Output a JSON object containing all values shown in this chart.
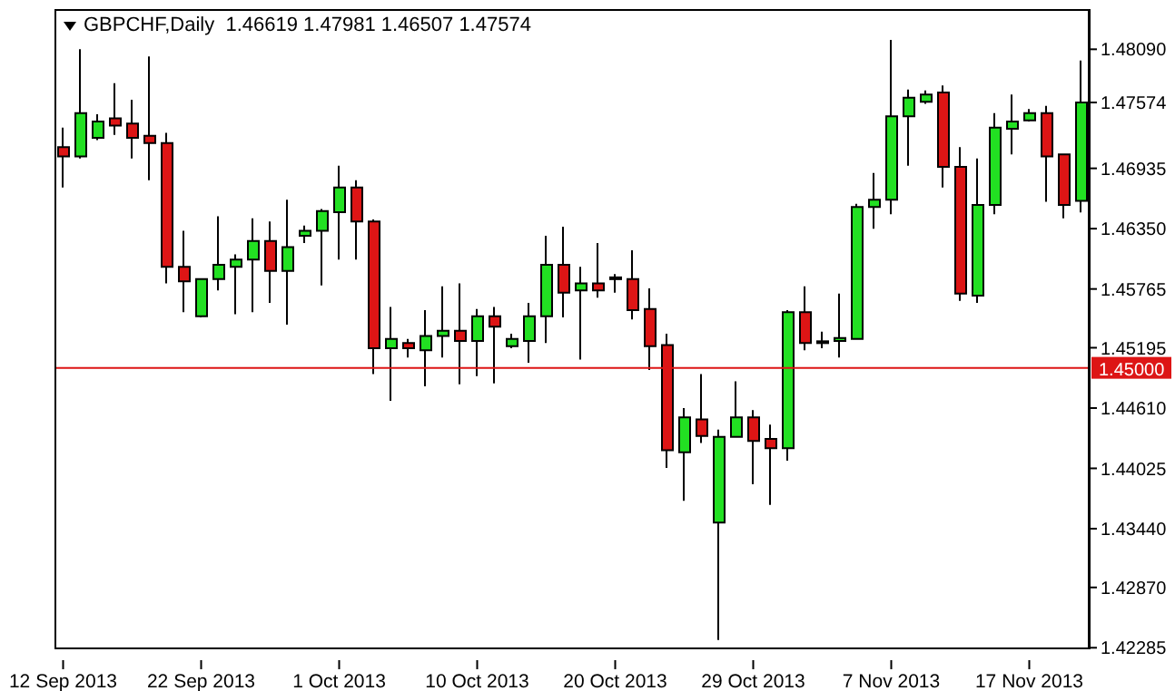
{
  "chart_data": {
    "type": "candlestick",
    "title": "GBPCHF,Daily  1.46619 1.47981 1.46507 1.47574",
    "categories": [
      "12 Sep 2013",
      null,
      null,
      null,
      null,
      null,
      null,
      null,
      "22 Sep 2013",
      null,
      null,
      null,
      null,
      null,
      null,
      null,
      "1 Oct 2013",
      null,
      null,
      null,
      null,
      null,
      null,
      null,
      "10 Oct 2013",
      null,
      null,
      null,
      null,
      null,
      null,
      null,
      "20 Oct 2013",
      null,
      null,
      null,
      null,
      null,
      null,
      null,
      "29 Oct 2013",
      null,
      null,
      null,
      null,
      null,
      null,
      null,
      "7 Nov 2013",
      null,
      null,
      null,
      null,
      null,
      null,
      null,
      "17 Nov 2013",
      null,
      null,
      null
    ],
    "ohlc": [
      [
        1.4714,
        1.4733,
        1.4675,
        1.4705
      ],
      [
        1.4705,
        1.4809,
        1.4703,
        1.4747
      ],
      [
        1.4723,
        1.4746,
        1.4721,
        1.4739
      ],
      [
        1.4742,
        1.4776,
        1.4726,
        1.4735
      ],
      [
        1.4737,
        1.476,
        1.4703,
        1.4723
      ],
      [
        1.4725,
        1.4802,
        1.4682,
        1.4718
      ],
      [
        1.4718,
        1.4728,
        1.4582,
        1.4598
      ],
      [
        1.4598,
        1.4633,
        1.4554,
        1.4584
      ],
      [
        1.455,
        1.4586,
        1.4549,
        1.4586
      ],
      [
        1.4586,
        1.4647,
        1.4575,
        1.46
      ],
      [
        1.4598,
        1.461,
        1.4552,
        1.4605
      ],
      [
        1.4605,
        1.4645,
        1.4554,
        1.4623
      ],
      [
        1.4623,
        1.4642,
        1.4563,
        1.4594
      ],
      [
        1.4594,
        1.4663,
        1.4542,
        1.4617
      ],
      [
        1.4628,
        1.4638,
        1.4621,
        1.4633
      ],
      [
        1.4633,
        1.4654,
        1.458,
        1.4652
      ],
      [
        1.4651,
        1.4696,
        1.4605,
        1.4675
      ],
      [
        1.4675,
        1.4682,
        1.4605,
        1.4642
      ],
      [
        1.4642,
        1.4644,
        1.4494,
        1.4519
      ],
      [
        1.4519,
        1.4559,
        1.4468,
        1.4528
      ],
      [
        1.4524,
        1.4528,
        1.451,
        1.4519
      ],
      [
        1.4517,
        1.4556,
        1.4482,
        1.4531
      ],
      [
        1.4531,
        1.4579,
        1.451,
        1.4536
      ],
      [
        1.4536,
        1.4582,
        1.4484,
        1.4526
      ],
      [
        1.4526,
        1.4557,
        1.4492,
        1.455
      ],
      [
        1.455,
        1.4559,
        1.4485,
        1.454
      ],
      [
        1.4521,
        1.4533,
        1.4519,
        1.4528
      ],
      [
        1.4526,
        1.4563,
        1.4505,
        1.455
      ],
      [
        1.455,
        1.4628,
        1.4524,
        1.46
      ],
      [
        1.46,
        1.4637,
        1.4549,
        1.4573
      ],
      [
        1.4575,
        1.4598,
        1.4508,
        1.4582
      ],
      [
        1.4582,
        1.4621,
        1.4568,
        1.4575
      ],
      [
        1.4587,
        1.4591,
        1.4573,
        1.4586
      ],
      [
        1.4586,
        1.4614,
        1.4547,
        1.4556
      ],
      [
        1.4557,
        1.4577,
        1.4498,
        1.4521
      ],
      [
        1.4522,
        1.4533,
        1.4403,
        1.442
      ],
      [
        1.4418,
        1.4461,
        1.4371,
        1.4452
      ],
      [
        1.445,
        1.4494,
        1.4427,
        1.4434
      ],
      [
        1.435,
        1.444,
        1.4236,
        1.4433
      ],
      [
        1.4433,
        1.4487,
        1.4433,
        1.4452
      ],
      [
        1.4452,
        1.4459,
        1.4387,
        1.4429
      ],
      [
        1.4431,
        1.4445,
        1.4367,
        1.4422
      ],
      [
        1.4422,
        1.4556,
        1.441,
        1.4554
      ],
      [
        1.4554,
        1.4579,
        1.4517,
        1.4524
      ],
      [
        1.4525,
        1.4535,
        1.4519,
        1.4524
      ],
      [
        1.4526,
        1.4572,
        1.451,
        1.4529
      ],
      [
        1.4528,
        1.4659,
        1.4528,
        1.4656
      ],
      [
        1.4656,
        1.4689,
        1.4635,
        1.4663
      ],
      [
        1.4663,
        1.4818,
        1.4649,
        1.4744
      ],
      [
        1.4744,
        1.477,
        1.4696,
        1.4762
      ],
      [
        1.4758,
        1.4769,
        1.4756,
        1.4765
      ],
      [
        1.4767,
        1.4774,
        1.4675,
        1.4695
      ],
      [
        1.4695,
        1.4714,
        1.4565,
        1.4572
      ],
      [
        1.457,
        1.4703,
        1.4563,
        1.4658
      ],
      [
        1.4658,
        1.4747,
        1.4649,
        1.4733
      ],
      [
        1.4732,
        1.4765,
        1.4707,
        1.4739
      ],
      [
        1.474,
        1.4751,
        1.4739,
        1.4747
      ],
      [
        1.4747,
        1.4754,
        1.4661,
        1.4705
      ],
      [
        1.4707,
        1.4707,
        1.4645,
        1.4658
      ],
      [
        1.46619,
        1.47981,
        1.46507,
        1.47574
      ]
    ],
    "colors": [
      "#dd1515",
      "#22e022",
      "#22e022",
      "#dd1515",
      "#dd1515",
      "#dd1515",
      "#dd1515",
      "#dd1515",
      "#22e022",
      "#22e022",
      "#22e022",
      "#22e022",
      "#dd1515",
      "#22e022",
      "#22e022",
      "#22e022",
      "#22e022",
      "#dd1515",
      "#dd1515",
      "#22e022",
      "#dd1515",
      "#22e022",
      "#22e022",
      "#dd1515",
      "#22e022",
      "#dd1515",
      "#22e022",
      "#22e022",
      "#22e022",
      "#dd1515",
      "#22e022",
      "#dd1515",
      "#dd1515",
      "#dd1515",
      "#dd1515",
      "#dd1515",
      "#22e022",
      "#dd1515",
      "#22e022",
      "#22e022",
      "#dd1515",
      "#dd1515",
      "#22e022",
      "#dd1515",
      "#dd1515",
      "#22e022",
      "#22e022",
      "#22e022",
      "#22e022",
      "#22e022",
      "#22e022",
      "#dd1515",
      "#dd1515",
      "#22e022",
      "#22e022",
      "#22e022",
      "#22e022",
      "#dd1515",
      "#dd1515",
      "#22e022"
    ],
    "ylim": [
      1.4227,
      1.4848
    ],
    "yticks": [
      {
        "value": 1.4809,
        "label": "1.48090"
      },
      {
        "value": 1.47574,
        "label": "1.47574"
      },
      {
        "value": 1.46935,
        "label": "1.46935"
      },
      {
        "value": 1.4635,
        "label": "1.46350"
      },
      {
        "value": 1.45765,
        "label": "1.45765"
      },
      {
        "value": 1.45195,
        "label": "1.45195"
      },
      {
        "value": 1.4461,
        "label": "1.44610"
      },
      {
        "value": 1.44025,
        "label": "1.44025"
      },
      {
        "value": 1.4344,
        "label": "1.43440"
      },
      {
        "value": 1.4287,
        "label": "1.42870"
      },
      {
        "value": 1.42285,
        "label": "1.42285"
      }
    ],
    "ref_lines": [
      {
        "axis": "y",
        "value": 1.45,
        "label": "1.45000",
        "color": "#dd1515"
      }
    ],
    "grid": false,
    "legend": false
  }
}
